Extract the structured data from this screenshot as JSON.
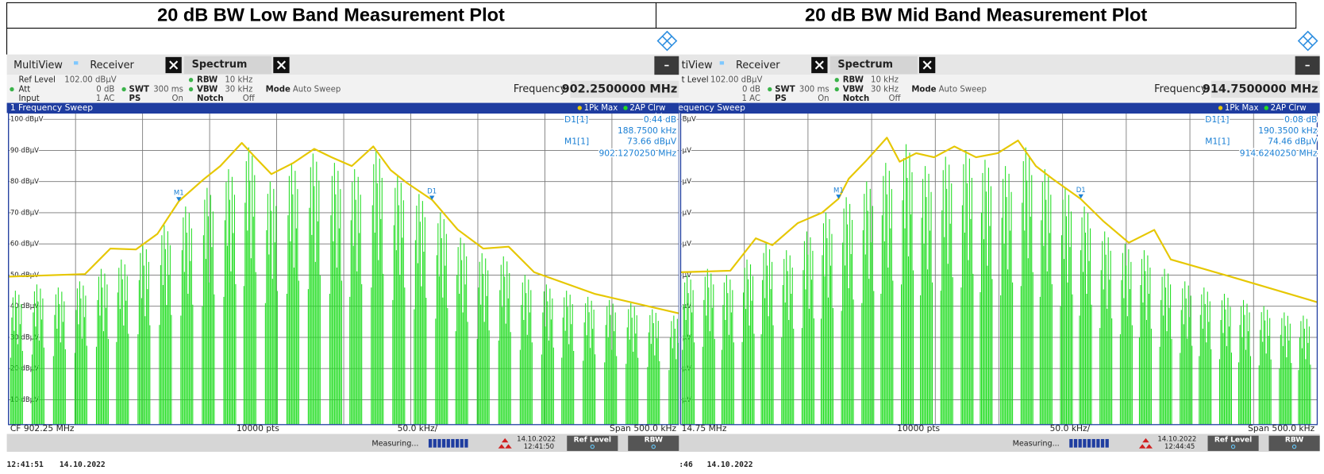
{
  "header": {
    "titles": [
      "20 dB BW Low Band Measurement Plot",
      "20 dB BW Mid Band Measurement Plot"
    ]
  },
  "panels": [
    {
      "tabs": {
        "multiview": "MultiView",
        "receiver": "Receiver",
        "spectrum": "Spectrum"
      },
      "settings": {
        "ref_level_label": "Ref Level",
        "ref_level": "102.00 dBµV",
        "att_label": "Att",
        "att": "0 dB",
        "input_label": "Input",
        "input": "1 AC",
        "swt_label": "SWT",
        "swt": "300 ms",
        "ps_label": "PS",
        "ps": "On",
        "rbw_label": "RBW",
        "rbw": "10 kHz",
        "vbw_label": "VBW",
        "vbw": "30 kHz",
        "notch_label": "Notch",
        "notch": "Off",
        "mode_label": "Mode",
        "mode": "Auto Sweep"
      },
      "frequency_label": "Frequency",
      "frequency": "902.2500000 MHz",
      "sweep_title": "1 Frequency Sweep",
      "trace1": "1Pk Max",
      "trace2": "2AP Clrw",
      "readouts": {
        "d1_label": "D1[1]",
        "d1_level": "0.44 dB",
        "d1_freq": "188.7500 kHz",
        "m1_label": "M1[1]",
        "m1_level": "73.66 dBµV",
        "m1_freq": "902.1270250 MHz"
      },
      "plot": {
        "xlim": [
          902.0,
          902.5
        ],
        "ylim": [
          2,
          102
        ],
        "xticks": [
          902.0,
          902.05,
          902.1,
          902.15,
          902.2,
          902.25,
          902.3,
          902.35,
          902.4,
          902.45,
          902.5
        ],
        "yticks": [
          {
            "value": 100,
            "label": "100 dBµV"
          },
          {
            "value": 90,
            "label": "90 dBµV"
          },
          {
            "value": 80,
            "label": "80 dBµV"
          },
          {
            "value": 70,
            "label": "70 dBµV"
          },
          {
            "value": 60,
            "label": "60 dBµV"
          },
          {
            "value": 50,
            "label": "50 dBµV"
          },
          {
            "value": 40,
            "label": "40 dBµV"
          },
          {
            "value": 30,
            "label": "30 dBµV"
          },
          {
            "value": 20,
            "label": "20 dBµV"
          },
          {
            "value": 10,
            "label": "10 dBµV"
          }
        ],
        "max_hold": {
          "color": "#e6c700",
          "x": [
            902.0,
            902.057,
            902.076,
            902.095,
            902.111,
            902.127,
            902.146,
            902.158,
            902.174,
            902.184,
            902.196,
            902.212,
            902.228,
            902.241,
            902.256,
            902.272,
            902.285,
            902.297,
            902.316,
            902.335,
            902.354,
            902.373,
            902.392,
            902.437,
            902.5
          ],
          "values": [
            49.5,
            50.3,
            58.5,
            58.2,
            63.2,
            73.7,
            80.9,
            85.0,
            92.4,
            87.8,
            82.4,
            85.9,
            90.5,
            87.8,
            85.0,
            91.3,
            83.7,
            79.6,
            74.1,
            64.6,
            58.5,
            59.1,
            50.9,
            44.0,
            37.7
          ]
        },
        "clear_write": {
          "color": "#22dd22",
          "x": [
            902.006,
            902.022,
            902.038,
            902.054,
            902.07,
            902.085,
            902.101,
            902.117,
            902.133,
            902.149,
            902.165,
            902.18,
            902.196,
            902.212,
            902.228,
            902.244,
            902.259,
            902.275,
            902.291,
            902.307,
            902.323,
            902.338,
            902.354,
            902.37,
            902.386,
            902.402,
            902.417,
            902.433,
            902.449,
            902.465,
            902.481,
            902.497
          ],
          "values": [
            45,
            47,
            46,
            48,
            52,
            55,
            60,
            66,
            72,
            78,
            84,
            91,
            80,
            86,
            89,
            86,
            84,
            90,
            82,
            76,
            70,
            62,
            57,
            56,
            50,
            47,
            45,
            43,
            42,
            41,
            39,
            37
          ]
        },
        "markers": [
          {
            "label": "M1",
            "x": 902.127025,
            "y": 73.66
          },
          {
            "label": "D1",
            "x": 902.315775,
            "y": 74.1
          }
        ]
      },
      "footer_row": {
        "cf": "CF 902.25 MHz",
        "points": "10000 pts",
        "div": "50.0 kHz/",
        "span": "Span 500.0 kHz"
      },
      "status": {
        "measuring": "Measuring...",
        "date": "14.10.2022",
        "time": "12:41:50",
        "ref_level_button": "Ref Level",
        "rbw_button": "RBW"
      },
      "timestamp": {
        "time": "12:41:51",
        "date": "14.10.2022"
      }
    },
    {
      "tabs": {
        "multiview": "tiView",
        "receiver": "Receiver",
        "spectrum": "Spectrum"
      },
      "settings": {
        "ref_level_label": "t Level",
        "ref_level": "102.00 dBµV",
        "att": "0 dB",
        "input": "1 AC",
        "swt_label": "SWT",
        "swt": "300 ms",
        "ps_label": "PS",
        "ps": "On",
        "rbw_label": "RBW",
        "rbw": "10 kHz",
        "vbw_label": "VBW",
        "vbw": "30 kHz",
        "notch_label": "Notch",
        "notch": "Off",
        "mode_label": "Mode",
        "mode": "Auto Sweep"
      },
      "frequency_label": "Frequency",
      "frequency": "914.7500000 MHz",
      "sweep_title": "equency Sweep",
      "trace1": "1Pk Max",
      "trace2": "2AP Clrw",
      "readouts": {
        "d1_label": "D1[1]",
        "d1_level": "0.08 dB",
        "d1_freq": "190.3500 kHz",
        "m1_label": "M1[1]",
        "m1_level": "74.46 dBµV",
        "m1_freq": "914.6240250 MHz"
      },
      "plot": {
        "xlim": [
          914.5,
          915.0
        ],
        "ylim": [
          2,
          102
        ],
        "xticks": [
          914.5,
          914.55,
          914.6,
          914.65,
          914.7,
          914.75,
          914.8,
          914.85,
          914.9,
          914.95,
          915.0
        ],
        "yticks": [
          {
            "value": 100,
            "label": "BµV"
          },
          {
            "value": 90,
            "label": "µV"
          },
          {
            "value": 80,
            "label": "µV"
          },
          {
            "value": 70,
            "label": "µV"
          },
          {
            "value": 60,
            "label": "µV"
          },
          {
            "value": 50,
            "label": "µV"
          },
          {
            "value": 40,
            "label": "µV"
          },
          {
            "value": 30,
            "label": "µV"
          },
          {
            "value": 20,
            "label": "µV"
          },
          {
            "value": 10,
            "label": "µV"
          }
        ],
        "max_hold": {
          "color": "#e6c700",
          "x": [
            914.5,
            914.539,
            914.559,
            914.572,
            914.592,
            914.611,
            914.624,
            914.632,
            914.645,
            914.662,
            914.672,
            914.685,
            914.699,
            914.715,
            914.732,
            914.749,
            914.765,
            914.779,
            914.792,
            914.814,
            914.832,
            914.852,
            914.872,
            914.885,
            914.932,
            915.0
          ],
          "values": [
            50.9,
            51.4,
            61.8,
            59.6,
            66.7,
            70.0,
            74.5,
            80.9,
            86.4,
            94.1,
            86.4,
            89.1,
            87.8,
            91.3,
            87.8,
            89.1,
            93.2,
            85.0,
            80.9,
            74.5,
            67.3,
            60.4,
            64.5,
            55.0,
            49.5,
            41.3
          ]
        },
        "clear_write": {
          "color": "#22dd22",
          "x": [
            914.506,
            914.522,
            914.537,
            914.553,
            914.568,
            914.584,
            914.6,
            914.615,
            914.631,
            914.647,
            914.662,
            914.678,
            914.693,
            914.709,
            914.725,
            914.74,
            914.756,
            914.772,
            914.787,
            914.803,
            914.818,
            914.834,
            914.85,
            914.865,
            914.881,
            914.897,
            914.912,
            914.928,
            914.943,
            914.959,
            914.975,
            914.99
          ],
          "values": [
            50,
            52,
            50,
            55,
            60,
            58,
            64,
            70,
            75,
            80,
            86,
            92,
            85,
            88,
            90,
            87,
            85,
            91,
            84,
            78,
            72,
            64,
            60,
            58,
            52,
            48,
            46,
            44,
            42,
            40,
            38,
            37
          ]
        },
        "markers": [
          {
            "label": "M1",
            "x": 914.624025,
            "y": 74.46
          },
          {
            "label": "D1",
            "x": 914.814375,
            "y": 74.54
          }
        ]
      },
      "footer_row": {
        "cf": "14.75 MHz",
        "points": "10000 pts",
        "div": "50.0 kHz/",
        "span": "Span 500.0 kHz"
      },
      "status": {
        "measuring": "Measuring...",
        "date": "14.10.2022",
        "time": "12:44:45",
        "ref_level_button": "Ref Level",
        "rbw_button": "RBW"
      },
      "timestamp": {
        "time": ":46",
        "date": "14.10.2022"
      }
    }
  ]
}
